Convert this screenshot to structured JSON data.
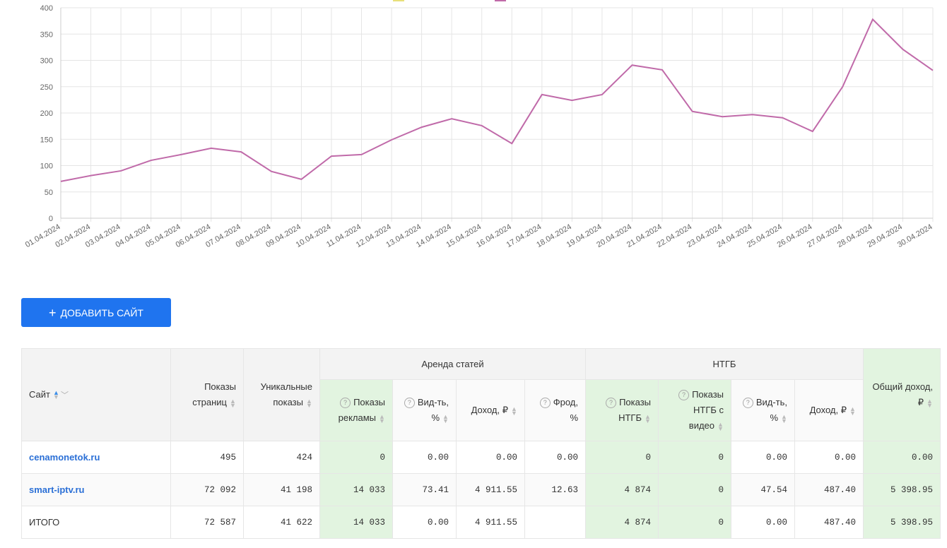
{
  "chart_data": {
    "type": "line",
    "title": "",
    "xlabel": "",
    "ylabel": "",
    "ylim": [
      0,
      400
    ],
    "yticks": [
      "0",
      "50",
      "100",
      "150",
      "200",
      "250",
      "300",
      "350",
      "400"
    ],
    "grid": true,
    "legend_colors": [
      "#e8e07a",
      "#c06aa9"
    ],
    "categories": [
      "01.04.2024",
      "02.04.2024",
      "03.04.2024",
      "04.04.2024",
      "05.04.2024",
      "06.04.2024",
      "07.04.2024",
      "08.04.2024",
      "09.04.2024",
      "10.04.2024",
      "11.04.2024",
      "12.04.2024",
      "13.04.2024",
      "14.04.2024",
      "15.04.2024",
      "16.04.2024",
      "17.04.2024",
      "18.04.2024",
      "19.04.2024",
      "20.04.2024",
      "21.04.2024",
      "22.04.2024",
      "23.04.2024",
      "24.04.2024",
      "25.04.2024",
      "26.04.2024",
      "27.04.2024",
      "28.04.2024",
      "29.04.2024",
      "30.04.2024"
    ],
    "series": [
      {
        "color": "#c06aa9",
        "values": [
          70,
          81,
          90,
          110,
          121,
          133,
          126,
          89,
          74,
          118,
          121,
          149,
          173,
          189,
          176,
          142,
          235,
          224,
          235,
          291,
          282,
          203,
          193,
          197,
          191,
          165,
          250,
          378,
          321,
          281
        ]
      }
    ]
  },
  "add_button": {
    "icon": "plus-icon",
    "label": "ДОБАВИТЬ САЙТ"
  },
  "table": {
    "headers": {
      "site": "Сайт",
      "page_views": "Показы страниц",
      "unique": "Уникальные показы",
      "group1": "Аренда статей",
      "group2": "НТГБ",
      "ad_views": "Показы рекламы",
      "viewability1": "Вид-ть, %",
      "income1": "Доход, ₽",
      "fraud": "Фрод, %",
      "ntgb_views": "Показы НТГБ",
      "ntgb_video": "Показы НТГБ с видео",
      "viewability2": "Вид-ть, %",
      "income2": "Доход, ₽",
      "total_income": "Общий доход, ₽"
    },
    "rows": [
      [
        "cenamonetok.ru",
        "495",
        "424",
        "0",
        "0.00",
        "0.00",
        "0.00",
        "0",
        "0",
        "0.00",
        "0.00",
        "0.00"
      ],
      [
        "smart-iptv.ru",
        "72 092",
        "41 198",
        "14 033",
        "73.41",
        "4 911.55",
        "12.63",
        "4 874",
        "0",
        "47.54",
        "487.40",
        "5 398.95"
      ],
      [
        "ИТОГО",
        "72 587",
        "41 622",
        "14 033",
        "0.00",
        "4 911.55",
        "",
        "4 874",
        "0",
        "0.00",
        "487.40",
        "5 398.95"
      ]
    ]
  }
}
